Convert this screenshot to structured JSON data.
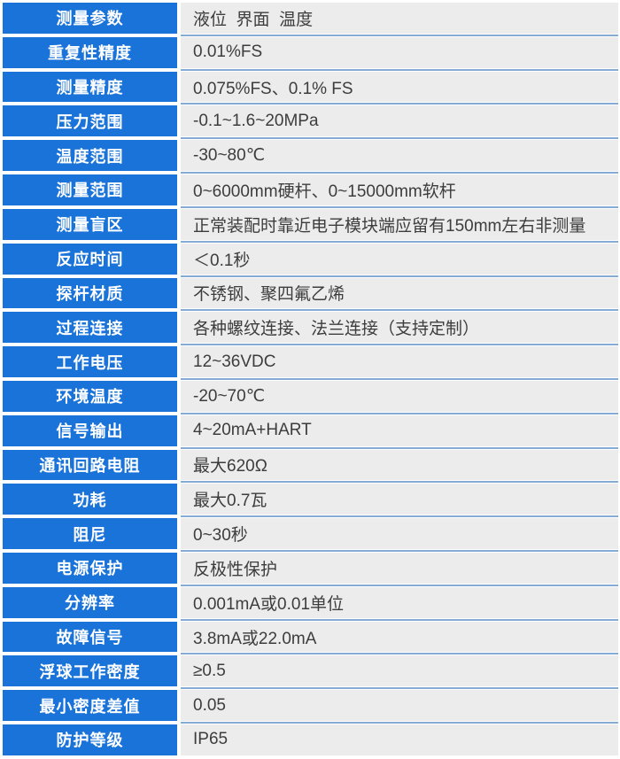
{
  "table": {
    "accent_color": "#1a73d9",
    "value_background": "#ececec",
    "divider_color": "#85abd5",
    "label_text_color": "#ffffff",
    "value_text_color": "#3d3d3d",
    "rows": [
      {
        "label": "测量参数",
        "value": "液位  界面  温度"
      },
      {
        "label": "重复性精度",
        "value": "0.01%FS"
      },
      {
        "label": "测量精度",
        "value": "0.075%FS、0.1% FS"
      },
      {
        "label": "压力范围",
        "value": "-0.1~1.6~20MPa"
      },
      {
        "label": "温度范围",
        "value": "-30~80℃"
      },
      {
        "label": "测量范围",
        "value": "0~6000mm硬杆、0~15000mm软杆"
      },
      {
        "label": "测量盲区",
        "value": "正常装配时靠近电子模块端应留有150mm左右非测量"
      },
      {
        "label": "反应时间",
        "value": "＜0.1秒"
      },
      {
        "label": "探杆材质",
        "value": "不锈钢、聚四氟乙烯"
      },
      {
        "label": "过程连接",
        "value": "各种螺纹连接、法兰连接（支持定制）"
      },
      {
        "label": "工作电压",
        "value": "12~36VDC"
      },
      {
        "label": "环境温度",
        "value": "-20~70℃"
      },
      {
        "label": "信号输出",
        "value": "4~20mA+HART"
      },
      {
        "label": "通讯回路电阻",
        "value": "最大620Ω"
      },
      {
        "label": "功耗",
        "value": "最大0.7瓦"
      },
      {
        "label": "阻尼",
        "value": "0~30秒"
      },
      {
        "label": "电源保护",
        "value": "反极性保护"
      },
      {
        "label": "分辨率",
        "value": "0.001mA或0.01单位"
      },
      {
        "label": "故障信号",
        "value": "3.8mA或22.0mA"
      },
      {
        "label": "浮球工作密度",
        "value": "≥0.5"
      },
      {
        "label": "最小密度差值",
        "value": "0.05"
      },
      {
        "label": "防护等级",
        "value": "IP65"
      }
    ]
  }
}
